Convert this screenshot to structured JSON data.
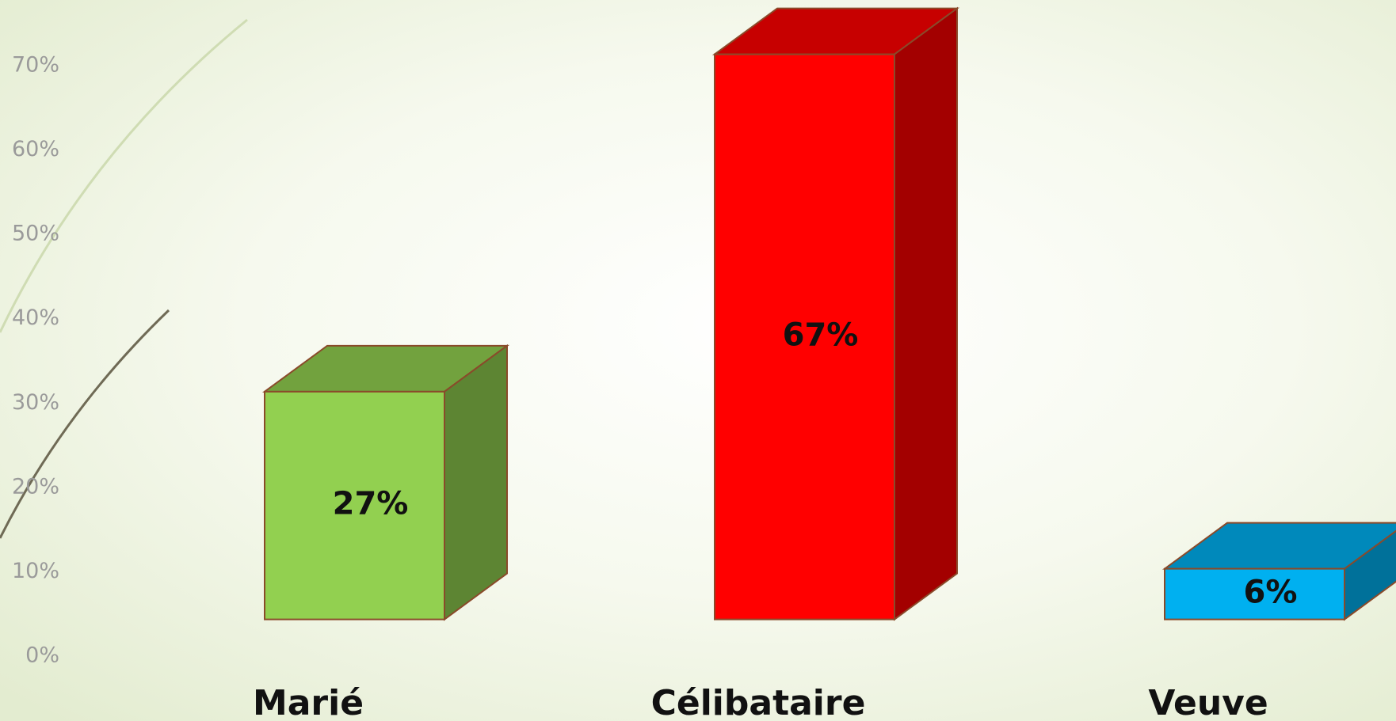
{
  "chart_data": {
    "type": "bar3d",
    "categories": [
      "Marié",
      "Célibataire",
      "Veuve"
    ],
    "values": [
      27,
      67,
      6
    ],
    "value_labels": [
      "27%",
      "67%",
      "6%"
    ],
    "colors": [
      "#92d050",
      "#ff0000",
      "#00b0f0"
    ],
    "ylim": [
      0,
      70
    ],
    "yticks": [
      {
        "value": 0,
        "label": "0%"
      },
      {
        "value": 10,
        "label": "10%"
      },
      {
        "value": 20,
        "label": "20%"
      },
      {
        "value": 30,
        "label": "30%"
      },
      {
        "value": 40,
        "label": "40%"
      },
      {
        "value": 50,
        "label": "50%"
      },
      {
        "value": 60,
        "label": "60%"
      },
      {
        "value": 70,
        "label": "70%"
      }
    ]
  }
}
